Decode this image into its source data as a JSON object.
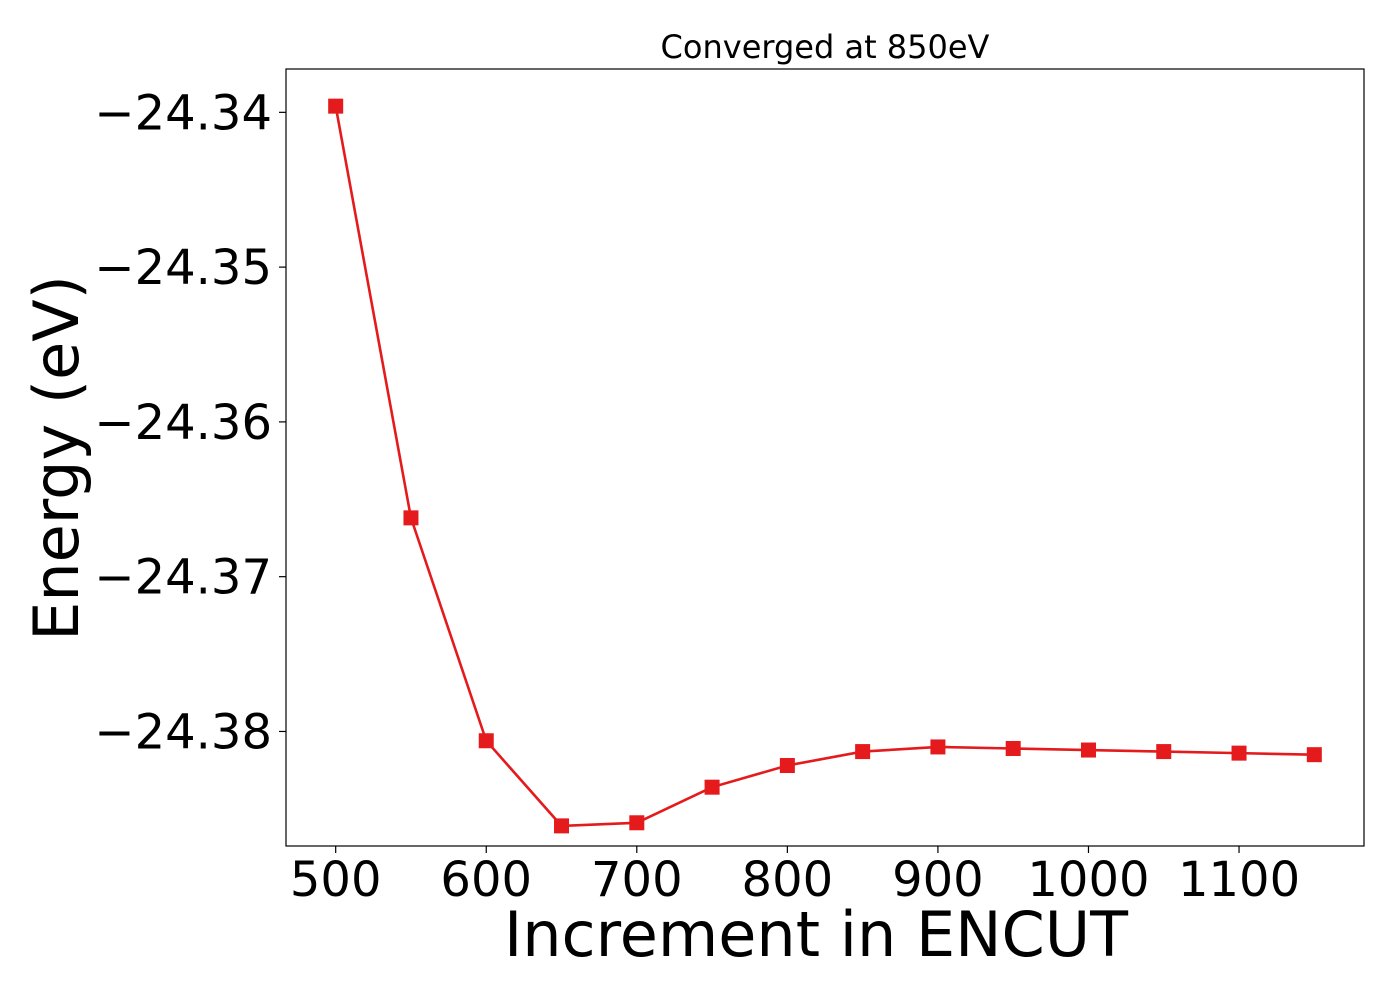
{
  "chart_data": {
    "type": "line",
    "title": "Converged at 850eV",
    "xlabel": "Increment in ENCUT",
    "ylabel": "Energy (eV)",
    "xlim": [
      467,
      1183
    ],
    "ylim": [
      -24.3874,
      -24.3372
    ],
    "xticks": [
      500,
      600,
      700,
      800,
      900,
      1000,
      1100
    ],
    "yticks": [
      -24.34,
      -24.35,
      -24.36,
      -24.37,
      -24.38
    ],
    "ytick_labels": [
      "−24.34",
      "−24.35",
      "−24.36",
      "−24.37",
      "−24.38"
    ],
    "grid": false,
    "legend": "none",
    "series": [
      {
        "color": "#e41a1c",
        "marker": "square",
        "x": [
          500,
          550,
          600,
          650,
          700,
          750,
          800,
          850,
          900,
          950,
          1000,
          1050,
          1100,
          1150
        ],
        "y": [
          -24.3396,
          -24.3662,
          -24.3806,
          -24.3861,
          -24.3859,
          -24.3836,
          -24.3822,
          -24.3813,
          -24.381,
          -24.3811,
          -24.3812,
          -24.3813,
          -24.3814,
          -24.3815
        ]
      }
    ]
  }
}
